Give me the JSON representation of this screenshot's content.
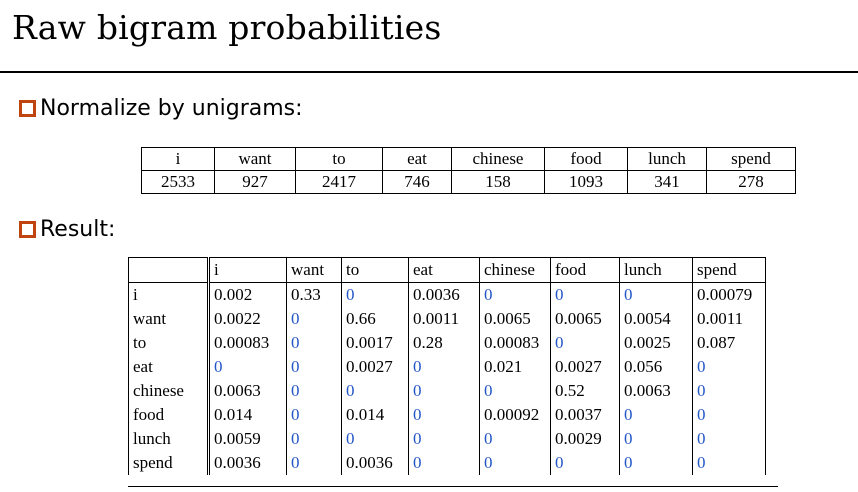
{
  "title": "Raw bigram probabilities",
  "bullets": {
    "normalize": "Normalize by unigrams:",
    "result": "Result:"
  },
  "unigrams": {
    "words": [
      "i",
      "want",
      "to",
      "eat",
      "chinese",
      "food",
      "lunch",
      "spend"
    ],
    "counts": [
      "2533",
      "927",
      "2417",
      "746",
      "158",
      "1093",
      "341",
      "278"
    ]
  },
  "bigrams": {
    "columns": [
      "i",
      "want",
      "to",
      "eat",
      "chinese",
      "food",
      "lunch",
      "spend"
    ],
    "rows": [
      {
        "word": "i",
        "values": [
          "0.002",
          "0.33",
          "0",
          "0.0036",
          "0",
          "0",
          "0",
          "0.00079"
        ]
      },
      {
        "word": "want",
        "values": [
          "0.0022",
          "0",
          "0.66",
          "0.0011",
          "0.0065",
          "0.0065",
          "0.0054",
          "0.0011"
        ]
      },
      {
        "word": "to",
        "values": [
          "0.00083",
          "0",
          "0.0017",
          "0.28",
          "0.00083",
          "0",
          "0.0025",
          "0.087"
        ]
      },
      {
        "word": "eat",
        "values": [
          "0",
          "0",
          "0.0027",
          "0",
          "0.021",
          "0.0027",
          "0.056",
          "0"
        ]
      },
      {
        "word": "chinese",
        "values": [
          "0.0063",
          "0",
          "0",
          "0",
          "0",
          "0.52",
          "0.0063",
          "0"
        ]
      },
      {
        "word": "food",
        "values": [
          "0.014",
          "0",
          "0.014",
          "0",
          "0.00092",
          "0.0037",
          "0",
          "0"
        ]
      },
      {
        "word": "lunch",
        "values": [
          "0.0059",
          "0",
          "0",
          "0",
          "0",
          "0.0029",
          "0",
          "0"
        ]
      },
      {
        "word": "spend",
        "values": [
          "0.0036",
          "0",
          "0.0036",
          "0",
          "0",
          "0",
          "0",
          "0"
        ]
      }
    ]
  },
  "colors": {
    "bullet": "#c0440f",
    "zero": "#2155c8"
  }
}
